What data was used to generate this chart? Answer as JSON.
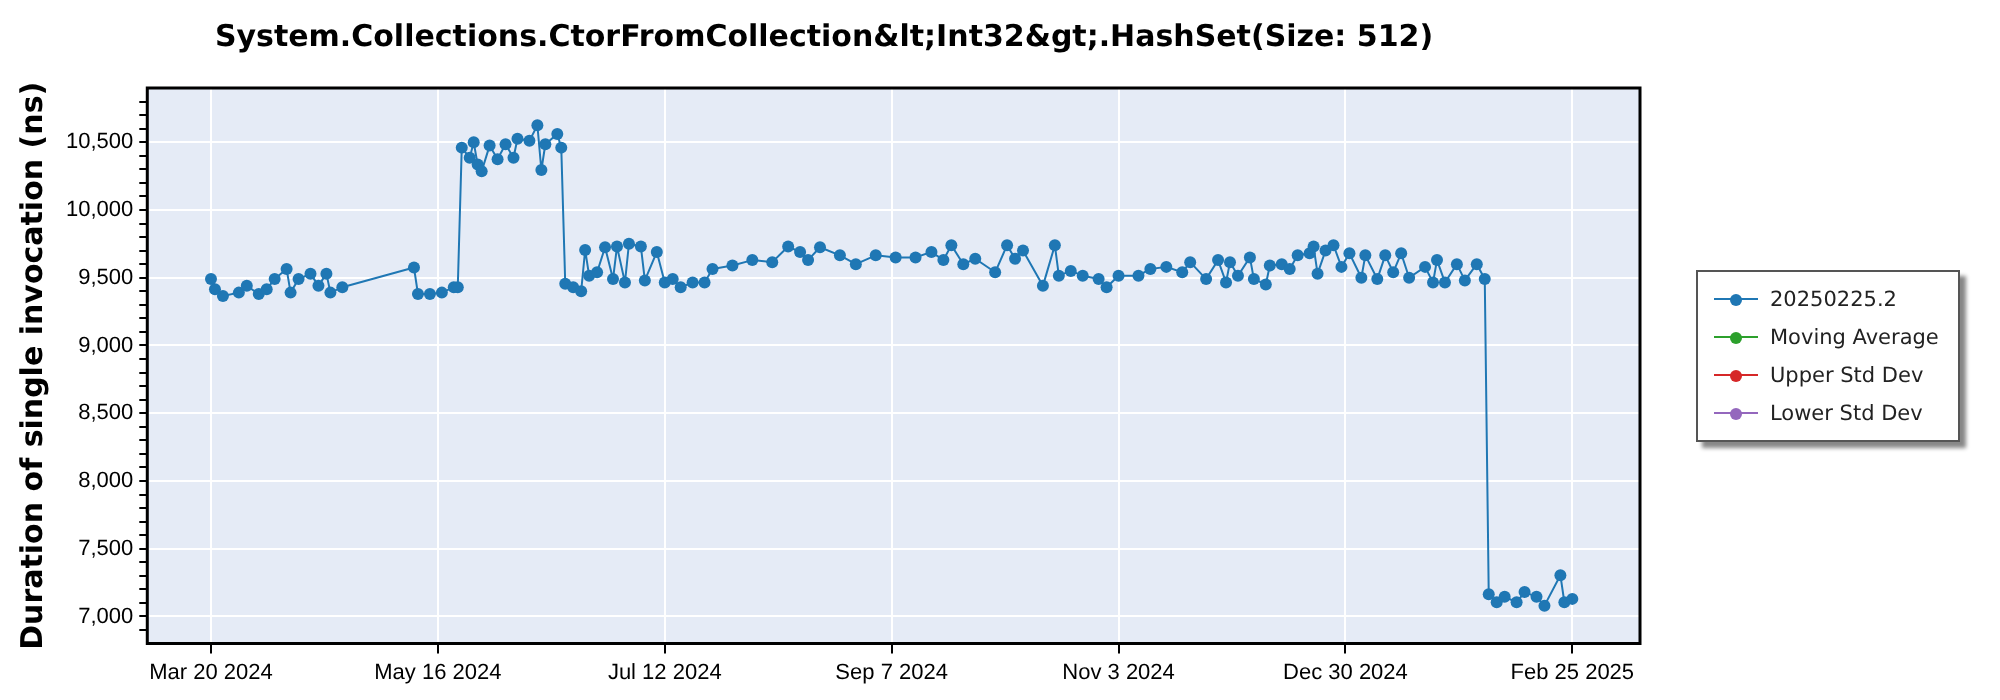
{
  "chart_data": {
    "type": "line",
    "title": "System.Collections.CtorFromCollection&lt;Int32&gt;.HashSet(Size: 512)",
    "ylabel": "Duration of single invocation (ns)",
    "xlim": [
      "2024-03-04",
      "2025-03-14"
    ],
    "xticks": [
      {
        "value": "2024-03-20",
        "label": "Mar 20 2024"
      },
      {
        "value": "2024-05-16",
        "label": "May 16 2024"
      },
      {
        "value": "2024-07-12",
        "label": "Jul 12 2024"
      },
      {
        "value": "2024-09-07",
        "label": "Sep 7 2024"
      },
      {
        "value": "2024-11-03",
        "label": "Nov 3 2024"
      },
      {
        "value": "2024-12-30",
        "label": "Dec 30 2024"
      },
      {
        "value": "2025-02-25",
        "label": "Feb 25 2025"
      }
    ],
    "ylim": [
      6800,
      10900
    ],
    "yticks": [
      {
        "value": 6900,
        "label": null
      },
      {
        "value": 7000,
        "label": "7,000"
      },
      {
        "value": 7100,
        "label": null
      },
      {
        "value": 7200,
        "label": null
      },
      {
        "value": 7300,
        "label": null
      },
      {
        "value": 7400,
        "label": null
      },
      {
        "value": 7500,
        "label": "7,500"
      },
      {
        "value": 7600,
        "label": null
      },
      {
        "value": 7700,
        "label": null
      },
      {
        "value": 7800,
        "label": null
      },
      {
        "value": 7900,
        "label": null
      },
      {
        "value": 8000,
        "label": "8,000"
      },
      {
        "value": 8100,
        "label": null
      },
      {
        "value": 8200,
        "label": null
      },
      {
        "value": 8300,
        "label": null
      },
      {
        "value": 8400,
        "label": null
      },
      {
        "value": 8500,
        "label": "8,500"
      },
      {
        "value": 8600,
        "label": null
      },
      {
        "value": 8700,
        "label": null
      },
      {
        "value": 8800,
        "label": null
      },
      {
        "value": 8900,
        "label": null
      },
      {
        "value": 9000,
        "label": "9,000"
      },
      {
        "value": 9100,
        "label": null
      },
      {
        "value": 9200,
        "label": null
      },
      {
        "value": 9300,
        "label": null
      },
      {
        "value": 9400,
        "label": null
      },
      {
        "value": 9500,
        "label": "9,500"
      },
      {
        "value": 9600,
        "label": null
      },
      {
        "value": 9700,
        "label": null
      },
      {
        "value": 9800,
        "label": null
      },
      {
        "value": 9900,
        "label": null
      },
      {
        "value": 10000,
        "label": "10,000"
      },
      {
        "value": 10100,
        "label": null
      },
      {
        "value": 10200,
        "label": null
      },
      {
        "value": 10300,
        "label": null
      },
      {
        "value": 10400,
        "label": null
      },
      {
        "value": 10500,
        "label": "10,500"
      },
      {
        "value": 10600,
        "label": null
      },
      {
        "value": 10700,
        "label": null
      },
      {
        "value": 10800,
        "label": null
      }
    ],
    "grid": true,
    "legend": "right",
    "marker": "circle",
    "line_style": "solid",
    "series": [
      {
        "name": "20250225.2",
        "color": "#1f77b4",
        "x": [
          "2024-03-20",
          "2024-03-21",
          "2024-03-23",
          "2024-03-27",
          "2024-03-29",
          "2024-04-01",
          "2024-04-03",
          "2024-04-05",
          "2024-04-08",
          "2024-04-09",
          "2024-04-11",
          "2024-04-14",
          "2024-04-16",
          "2024-04-18",
          "2024-04-19",
          "2024-04-22",
          "2024-05-10",
          "2024-05-11",
          "2024-05-14",
          "2024-05-17",
          "2024-05-20",
          "2024-05-21",
          "2024-05-22",
          "2024-05-24",
          "2024-05-25",
          "2024-05-26",
          "2024-05-27",
          "2024-05-29",
          "2024-05-31",
          "2024-06-02",
          "2024-06-04",
          "2024-06-05",
          "2024-06-08",
          "2024-06-10",
          "2024-06-11",
          "2024-06-12",
          "2024-06-15",
          "2024-06-16",
          "2024-06-17",
          "2024-06-19",
          "2024-06-21",
          "2024-06-22",
          "2024-06-23",
          "2024-06-25",
          "2024-06-27",
          "2024-06-29",
          "2024-06-30",
          "2024-07-02",
          "2024-07-03",
          "2024-07-06",
          "2024-07-07",
          "2024-07-10",
          "2024-07-12",
          "2024-07-14",
          "2024-07-16",
          "2024-07-19",
          "2024-07-22",
          "2024-07-24",
          "2024-07-29",
          "2024-08-03",
          "2024-08-08",
          "2024-08-12",
          "2024-08-15",
          "2024-08-17",
          "2024-08-20",
          "2024-08-25",
          "2024-08-29",
          "2024-09-03",
          "2024-09-08",
          "2024-09-13",
          "2024-09-17",
          "2024-09-20",
          "2024-09-22",
          "2024-09-25",
          "2024-09-28",
          "2024-10-03",
          "2024-10-06",
          "2024-10-08",
          "2024-10-10",
          "2024-10-15",
          "2024-10-18",
          "2024-10-19",
          "2024-10-22",
          "2024-10-25",
          "2024-10-29",
          "2024-10-31",
          "2024-11-03",
          "2024-11-08",
          "2024-11-11",
          "2024-11-15",
          "2024-11-19",
          "2024-11-21",
          "2024-11-25",
          "2024-11-28",
          "2024-11-30",
          "2024-12-01",
          "2024-12-03",
          "2024-12-06",
          "2024-12-07",
          "2024-12-10",
          "2024-12-11",
          "2024-12-14",
          "2024-12-16",
          "2024-12-18",
          "2024-12-21",
          "2024-12-22",
          "2024-12-23",
          "2024-12-25",
          "2024-12-27",
          "2024-12-29",
          "2024-12-31",
          "2025-01-03",
          "2025-01-04",
          "2025-01-07",
          "2025-01-09",
          "2025-01-11",
          "2025-01-13",
          "2025-01-15",
          "2025-01-19",
          "2025-01-21",
          "2025-01-22",
          "2025-01-24",
          "2025-01-27",
          "2025-01-29",
          "2025-02-01",
          "2025-02-03",
          "2025-02-04",
          "2025-02-06",
          "2025-02-08",
          "2025-02-11",
          "2025-02-13",
          "2025-02-16",
          "2025-02-18",
          "2025-02-22",
          "2025-02-23",
          "2025-02-25"
        ],
        "values": [
          9490,
          9415,
          9365,
          9390,
          9440,
          9380,
          9415,
          9490,
          9565,
          9390,
          9490,
          9530,
          9440,
          9530,
          9390,
          9430,
          9575,
          9380,
          9380,
          9390,
          9430,
          9430,
          10460,
          10385,
          10500,
          10335,
          10285,
          10475,
          10375,
          10485,
          10385,
          10525,
          10510,
          10625,
          10295,
          10485,
          10560,
          10460,
          9455,
          9430,
          9400,
          9705,
          9515,
          9540,
          9725,
          9490,
          9730,
          9465,
          9750,
          9730,
          9480,
          9690,
          9465,
          9490,
          9430,
          9465,
          9465,
          9565,
          9590,
          9630,
          9615,
          9730,
          9690,
          9630,
          9725,
          9665,
          9600,
          9665,
          9650,
          9650,
          9690,
          9630,
          9740,
          9600,
          9640,
          9540,
          9740,
          9640,
          9700,
          9440,
          9740,
          9515,
          9550,
          9515,
          9490,
          9430,
          9515,
          9515,
          9565,
          9580,
          9540,
          9615,
          9490,
          9630,
          9465,
          9615,
          9515,
          9650,
          9490,
          9450,
          9590,
          9600,
          9565,
          9665,
          9680,
          9730,
          9530,
          9700,
          9740,
          9580,
          9680,
          9500,
          9665,
          9490,
          9665,
          9540,
          9680,
          9500,
          9580,
          9465,
          9630,
          9465,
          9600,
          9480,
          9600,
          9490,
          7165,
          7105,
          7145,
          7105,
          7180,
          7145,
          7080,
          7305,
          7105,
          7130
        ]
      },
      {
        "name": "Moving Average",
        "color": "#2ca02c"
      },
      {
        "name": "Upper Std Dev",
        "color": "#d62728"
      },
      {
        "name": "Lower Std Dev",
        "color": "#9467bd"
      }
    ]
  }
}
